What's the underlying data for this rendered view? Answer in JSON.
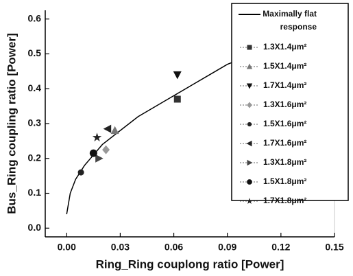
{
  "chart_data": {
    "type": "scatter",
    "x_label": "Ring_Ring couplong ratio [Power]",
    "y_label": "Bus_Ring coupling ratio [Power]",
    "xlim": [
      -0.012,
      0.15
    ],
    "ylim": [
      -0.025,
      0.625
    ],
    "xticks": [
      {
        "value": 0,
        "label": "0.00"
      },
      0.03,
      0.06,
      0.09,
      0.12,
      0.15
    ],
    "yticks": [
      {
        "value": 0,
        "label": "0.0"
      },
      0.1,
      0.2,
      0.3,
      0.4,
      0.5,
      0.6
    ],
    "legend": "upper right",
    "series": [
      {
        "name": "Maximally flat response",
        "marker": "line",
        "color": "#000000",
        "x": [
          0.0,
          0.002,
          0.005,
          0.01,
          0.015,
          0.02,
          0.03,
          0.04,
          0.05,
          0.06,
          0.07,
          0.08,
          0.09,
          0.1
        ],
        "values": [
          0.04,
          0.1,
          0.14,
          0.18,
          0.21,
          0.24,
          0.28,
          0.32,
          0.35,
          0.38,
          0.41,
          0.44,
          0.47,
          0.49
        ]
      },
      {
        "name": "1.3X1.4μm²",
        "marker": "square",
        "color": "#333333",
        "x": [
          0.062
        ],
        "values": [
          0.37
        ]
      },
      {
        "name": "1.5X1.4μm²",
        "marker": "triangle-up",
        "color": "#777777",
        "x": [
          0.027
        ],
        "values": [
          0.28
        ]
      },
      {
        "name": "1.7X1.4μm²",
        "marker": "triangle-down",
        "color": "#111111",
        "x": [
          0.062
        ],
        "values": [
          0.44
        ]
      },
      {
        "name": "1.3X1.6μm²",
        "marker": "diamond",
        "color": "#999999",
        "x": [
          0.022
        ],
        "values": [
          0.225
        ]
      },
      {
        "name": "1.5X1.6μm²",
        "marker": "circle-small",
        "color": "#222222",
        "x": [
          0.008
        ],
        "values": [
          0.16
        ]
      },
      {
        "name": "1.7X1.6μm²",
        "marker": "triangle-left",
        "color": "#222222",
        "x": [
          0.023
        ],
        "values": [
          0.285
        ]
      },
      {
        "name": "1.3X1.8μm²",
        "marker": "triangle-right",
        "color": "#444444",
        "x": [
          0.018
        ],
        "values": [
          0.2
        ]
      },
      {
        "name": "1.5X1.8μm²",
        "marker": "circle",
        "color": "#111111",
        "x": [
          0.015
        ],
        "values": [
          0.215
        ]
      },
      {
        "name": "1.7X1.8μm²",
        "marker": "star",
        "color": "#222222",
        "x": [
          0.017
        ],
        "values": [
          0.26
        ]
      }
    ]
  }
}
